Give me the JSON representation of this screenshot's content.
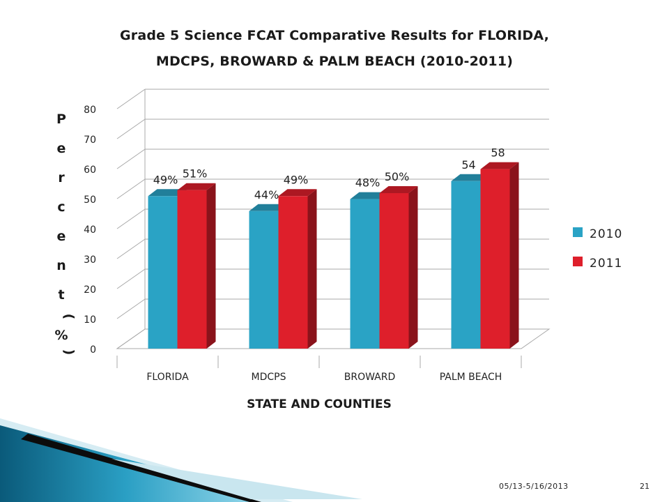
{
  "slide": {
    "title_line1": "Grade 5 Science FCAT Comparative Results for FLORIDA,",
    "title_line2": "MDCPS, BROWARD & PALM BEACH (2010-2011)",
    "footer_date": "05/13-5/16/2013",
    "page_number": "21"
  },
  "chart_data": {
    "type": "bar",
    "style": "3d-clustered",
    "categories": [
      "FLORIDA",
      "MDCPS",
      "BROWARD",
      "PALM BEACH"
    ],
    "series": [
      {
        "name": "2010",
        "color": "#2aa3c5",
        "values": [
          49,
          44,
          48,
          54
        ],
        "data_labels": [
          "49%",
          "44%",
          "48%",
          "54"
        ]
      },
      {
        "name": "2011",
        "color": "#de1f2b",
        "values": [
          51,
          49,
          50,
          58
        ],
        "data_labels": [
          "51%",
          "49%",
          "50%",
          "58"
        ]
      }
    ],
    "ylabel_chars": [
      "P",
      "e",
      "r",
      "c",
      "e",
      "n",
      "t",
      "(",
      "%",
      ")"
    ],
    "xlabel": "STATE AND COUNTIES",
    "ylim": [
      0,
      80
    ],
    "yticks": [
      0,
      10,
      20,
      30,
      40,
      50,
      60,
      70,
      80
    ],
    "grid": true,
    "legend_position": "right"
  }
}
